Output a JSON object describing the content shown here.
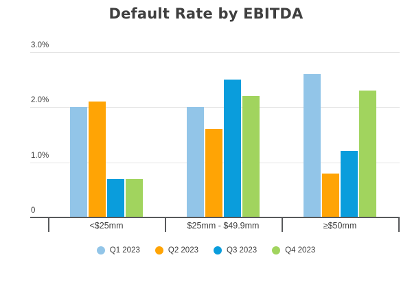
{
  "title": "Default Rate by EBITDA",
  "chart_data": {
    "type": "bar",
    "title": "Default Rate by EBITDA",
    "categories": [
      "<$25mm",
      "$25mm - $49.9mm",
      "≥$50mm"
    ],
    "series": [
      {
        "name": "Q1 2023",
        "color": "#92C5E8",
        "values": [
          2.0,
          2.0,
          2.6
        ]
      },
      {
        "name": "Q2 2023",
        "color": "#FFA405",
        "values": [
          2.1,
          1.6,
          0.8
        ]
      },
      {
        "name": "Q3 2023",
        "color": "#0A9DDC",
        "values": [
          0.7,
          2.5,
          1.2
        ]
      },
      {
        "name": "Q4 2023",
        "color": "#A1D45E",
        "values": [
          0.7,
          2.2,
          2.3
        ]
      }
    ],
    "xlabel": "",
    "ylabel": "",
    "unit": "%",
    "ylim": [
      0,
      3.0
    ],
    "y_ticks": [
      {
        "value": 0,
        "label": "0"
      },
      {
        "value": 1.0,
        "label": "1.0%"
      },
      {
        "value": 2.0,
        "label": "2.0%"
      },
      {
        "value": 3.0,
        "label": "3.0%"
      }
    ],
    "grid": "horizontal",
    "legend_position": "bottom"
  }
}
